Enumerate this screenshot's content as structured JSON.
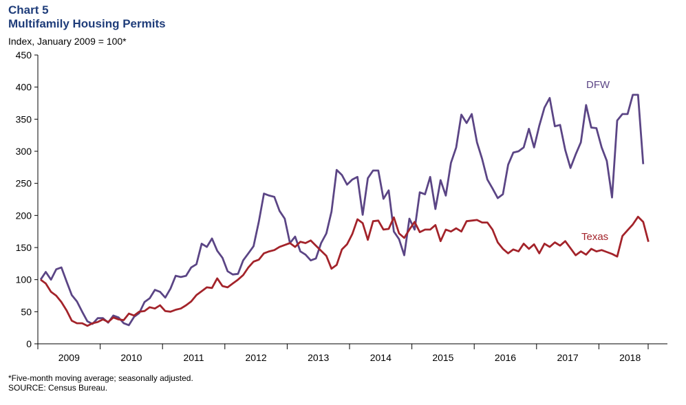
{
  "header": {
    "title": "Chart 5",
    "subtitle": "Multifamily Housing Permits",
    "ylabel": "Index, January 2009 = 100*"
  },
  "footer": {
    "footnote": "*Five-month  moving average;  seasonally adjusted.",
    "source": "SOURCE: Census Bureau."
  },
  "colors": {
    "title": "#1f3d7a",
    "dfw": "#5b4585",
    "texas": "#a3232a",
    "axis": "#000000"
  },
  "chart_data": {
    "type": "line",
    "ylim": [
      0,
      450
    ],
    "yticks": [
      0,
      50,
      100,
      150,
      200,
      250,
      300,
      350,
      400,
      450
    ],
    "year_labels": [
      "2009",
      "2010",
      "2011",
      "2012",
      "2013",
      "2014",
      "2015",
      "2016",
      "2017",
      "2018"
    ],
    "grid": false,
    "series": [
      {
        "name": "DFW",
        "color": "#5b4585",
        "values": [
          100,
          112,
          100,
          116,
          119,
          97,
          76,
          66,
          50,
          35,
          31,
          40,
          40,
          33,
          44,
          41,
          32,
          29,
          42,
          48,
          65,
          71,
          84,
          81,
          72,
          86,
          106,
          104,
          106,
          119,
          124,
          156,
          151,
          164,
          145,
          134,
          113,
          108,
          109,
          130,
          141,
          152,
          190,
          234,
          231,
          229,
          207,
          195,
          157,
          167,
          144,
          139,
          130,
          133,
          157,
          172,
          206,
          271,
          263,
          248,
          256,
          260,
          201,
          258,
          270,
          270,
          226,
          239,
          175,
          163,
          138,
          195,
          178,
          236,
          233,
          260,
          210,
          255,
          231,
          282,
          306,
          357,
          344,
          358,
          314,
          288,
          256,
          242,
          227,
          233,
          279,
          298,
          300,
          306,
          335,
          306,
          340,
          368,
          383,
          339,
          341,
          302,
          274,
          295,
          314,
          372,
          337,
          336,
          306,
          285,
          228,
          348,
          358,
          358,
          388,
          388,
          280
        ]
      },
      {
        "name": "Texas",
        "color": "#a3232a",
        "values": [
          100,
          94,
          81,
          75,
          65,
          52,
          36,
          32,
          32,
          28,
          32,
          34,
          38,
          34,
          41,
          38,
          37,
          47,
          44,
          50,
          51,
          57,
          55,
          60,
          51,
          50,
          53,
          55,
          60,
          66,
          76,
          82,
          88,
          87,
          102,
          90,
          88,
          94,
          100,
          107,
          119,
          128,
          131,
          141,
          144,
          146,
          151,
          154,
          157,
          151,
          159,
          157,
          161,
          153,
          145,
          137,
          117,
          123,
          147,
          155,
          171,
          194,
          188,
          162,
          191,
          192,
          178,
          179,
          197,
          172,
          165,
          178,
          190,
          174,
          178,
          178,
          185,
          160,
          178,
          175,
          180,
          175,
          191,
          192,
          193,
          189,
          189,
          178,
          158,
          148,
          141,
          147,
          144,
          156,
          148,
          155,
          141,
          156,
          151,
          158,
          153,
          160,
          149,
          138,
          144,
          139,
          148,
          144,
          146,
          143,
          140,
          136,
          168,
          177,
          186,
          198,
          190,
          159
        ]
      }
    ],
    "annotations": [
      "DFW",
      "Texas"
    ]
  }
}
